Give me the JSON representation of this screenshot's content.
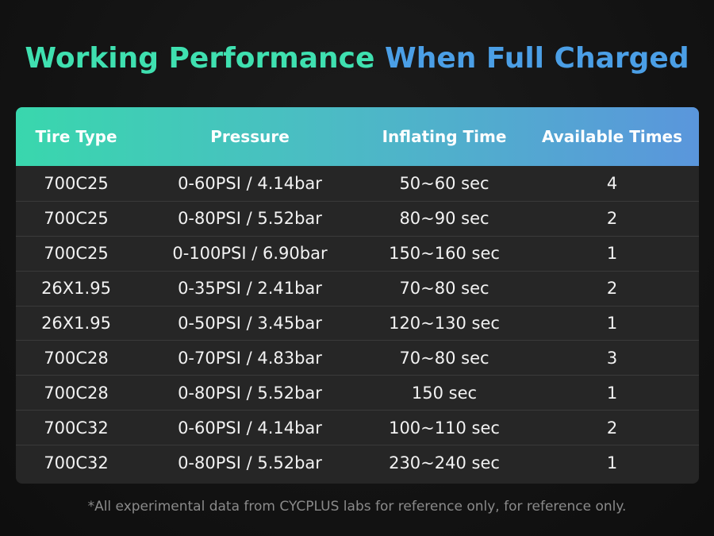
{
  "title": {
    "part1": "Working Performance",
    "part2": "When Full Charged"
  },
  "table": {
    "headers": [
      "Tire Type",
      "Pressure",
      "Inflating Time",
      "Available Times"
    ],
    "rows": [
      [
        "700C25",
        "0-60PSI / 4.14bar",
        "50~60 sec",
        "4"
      ],
      [
        "700C25",
        "0-80PSI / 5.52bar",
        "80~90 sec",
        "2"
      ],
      [
        "700C25",
        "0-100PSI / 6.90bar",
        "150~160 sec",
        "1"
      ],
      [
        "26X1.95",
        "0-35PSI / 2.41bar",
        "70~80 sec",
        "2"
      ],
      [
        "26X1.95",
        "0-50PSI / 3.45bar",
        "120~130 sec",
        "1"
      ],
      [
        "700C28",
        "0-70PSI / 4.83bar",
        "70~80 sec",
        "3"
      ],
      [
        "700C28",
        "0-80PSI / 5.52bar",
        "150 sec",
        "1"
      ],
      [
        "700C32",
        "0-60PSI / 4.14bar",
        "100~110 sec",
        "2"
      ],
      [
        "700C32",
        "0-80PSI / 5.52bar",
        "230~240 sec",
        "1"
      ]
    ]
  },
  "footnote": "*All experimental data from CYCPLUS labs for reference only,   for reference only.",
  "colors": {
    "title_green": "#3fe0b0",
    "title_blue": "#4b9fe6",
    "header_gradient_start": "#39d7ad",
    "header_gradient_end": "#5a96dc",
    "table_bg": "#262626",
    "page_bg": "#131313"
  }
}
